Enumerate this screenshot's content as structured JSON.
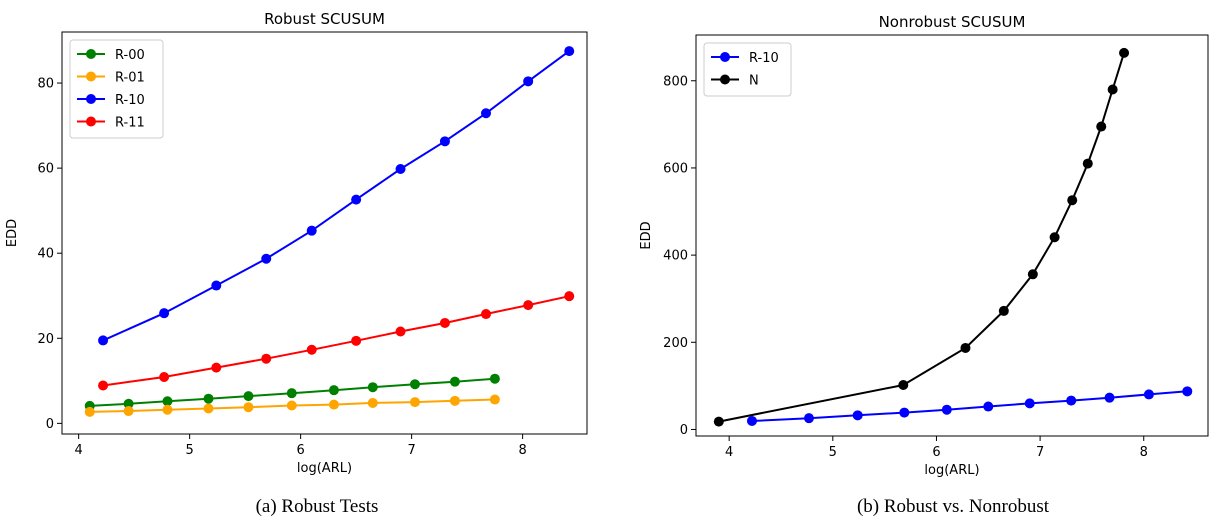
{
  "chart_data": [
    {
      "type": "line",
      "title": "Robust SCUSUM",
      "xlabel": "log(ARL)",
      "ylabel": "EDD",
      "xlim": [
        3.85,
        8.58
      ],
      "ylim": [
        -2.5,
        92
      ],
      "xticks": [
        4,
        5,
        6,
        7,
        8
      ],
      "yticks": [
        0,
        20,
        40,
        60,
        80
      ],
      "grid": false,
      "legend_position": "upper-left",
      "series": [
        {
          "name": "R-00",
          "color": "#008000",
          "x": [
            4.1,
            4.45,
            4.8,
            5.17,
            5.53,
            5.92,
            6.3,
            6.65,
            7.03,
            7.39,
            7.75
          ],
          "y": [
            4.1,
            4.6,
            5.2,
            5.8,
            6.4,
            7.1,
            7.8,
            8.5,
            9.2,
            9.8,
            10.5
          ]
        },
        {
          "name": "R-01",
          "color": "#ffa500",
          "x": [
            4.1,
            4.45,
            4.8,
            5.17,
            5.53,
            5.92,
            6.3,
            6.65,
            7.03,
            7.39,
            7.75
          ],
          "y": [
            2.7,
            2.9,
            3.2,
            3.5,
            3.8,
            4.2,
            4.4,
            4.8,
            5.0,
            5.3,
            5.6
          ]
        },
        {
          "name": "R-10",
          "color": "#0000ff",
          "x": [
            4.22,
            4.77,
            5.24,
            5.69,
            6.1,
            6.5,
            6.9,
            7.3,
            7.67,
            8.05,
            8.42
          ],
          "y": [
            19.5,
            25.9,
            32.4,
            38.7,
            45.3,
            52.6,
            59.8,
            66.3,
            72.9,
            80.4,
            87.5
          ]
        },
        {
          "name": "R-11",
          "color": "#ff0000",
          "x": [
            4.22,
            4.77,
            5.24,
            5.69,
            6.1,
            6.5,
            6.9,
            7.3,
            7.67,
            8.05,
            8.42
          ],
          "y": [
            8.9,
            10.9,
            13.1,
            15.2,
            17.3,
            19.4,
            21.6,
            23.6,
            25.7,
            27.8,
            29.9
          ]
        }
      ]
    },
    {
      "type": "line",
      "title": "Nonrobust SCUSUM",
      "xlabel": "log(ARL)",
      "ylabel": "EDD",
      "xlim": [
        3.68,
        8.62
      ],
      "ylim": [
        -15,
        905
      ],
      "xticks": [
        4,
        5,
        6,
        7,
        8
      ],
      "yticks": [
        0,
        200,
        400,
        600,
        800
      ],
      "grid": false,
      "legend_position": "upper-left",
      "series": [
        {
          "name": "R-10",
          "color": "#0000ff",
          "x": [
            4.22,
            4.77,
            5.24,
            5.69,
            6.1,
            6.5,
            6.9,
            7.3,
            7.67,
            8.05,
            8.42
          ],
          "y": [
            19.5,
            25.9,
            32.4,
            38.7,
            45.3,
            52.6,
            59.8,
            66.3,
            72.9,
            80.4,
            87.5
          ]
        },
        {
          "name": "N",
          "color": "#000000",
          "x": [
            3.9,
            5.68,
            6.28,
            6.65,
            6.93,
            7.14,
            7.31,
            7.46,
            7.59,
            7.7,
            7.81
          ],
          "y": [
            18,
            102,
            187,
            272,
            356,
            441,
            526,
            610,
            695,
            780,
            864
          ]
        }
      ]
    }
  ],
  "captions": {
    "a": "(a) Robust Tests",
    "b": "(b) Robust vs. Nonrobust"
  }
}
